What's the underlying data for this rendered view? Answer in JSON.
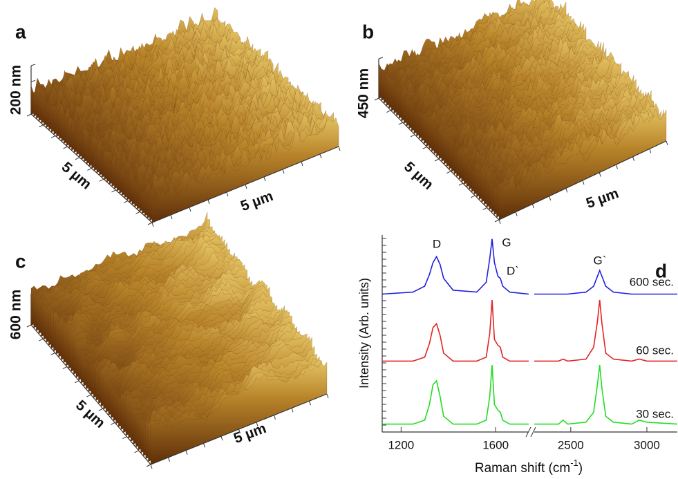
{
  "panels": [
    {
      "letter": "a",
      "z_label": "200 nm",
      "depth_label": "5 µm",
      "width_label": "5 µm"
    },
    {
      "letter": "b",
      "z_label": "450 nm",
      "depth_label": "5 µm",
      "width_label": "5 µm"
    },
    {
      "letter": "c",
      "z_label": "600 nm",
      "depth_label": "5 µm",
      "width_label": "5 µm"
    }
  ],
  "chart_data": {
    "type": "line",
    "letter": "d",
    "x_label": "Raman shift (cm",
    "x_label_sup": "-1",
    "x_label_end": ")",
    "y_label": "Intensity (Arb. units)",
    "x_segments": [
      {
        "xlim": [
          1120,
          1740
        ],
        "xticks": [
          1200,
          1600
        ]
      },
      {
        "xlim": [
          2260,
          3200
        ],
        "xticks": [
          2500,
          3000
        ]
      }
    ],
    "ylim": [
      0,
      10
    ],
    "annotations": [
      "D",
      "G",
      "D`",
      "G`"
    ],
    "x": [
      1120,
      1250,
      1300,
      1320,
      1335,
      1350,
      1365,
      1380,
      1420,
      1520,
      1560,
      1575,
      1585,
      1595,
      1610,
      1620,
      1630,
      1660,
      1740,
      2260,
      2420,
      2450,
      2480,
      2600,
      2650,
      2675,
      2690,
      2705,
      2730,
      2780,
      2900,
      2950,
      3000,
      3200
    ],
    "series": [
      {
        "name": "600 sec.",
        "color": "#1f1fe0",
        "values": [
          7.0,
          7.1,
          7.4,
          8.0,
          8.6,
          8.9,
          8.5,
          7.8,
          7.2,
          7.1,
          7.6,
          8.8,
          9.8,
          8.6,
          7.9,
          7.8,
          7.4,
          7.1,
          7.0,
          7.0,
          7.0,
          7.0,
          7.0,
          7.1,
          7.4,
          7.9,
          8.2,
          7.9,
          7.4,
          7.1,
          7.0,
          7.0,
          7.0,
          7.0
        ]
      },
      {
        "name": "60 sec.",
        "color": "#e52222",
        "values": [
          3.6,
          3.6,
          3.8,
          4.5,
          5.3,
          5.5,
          4.9,
          4.0,
          3.6,
          3.6,
          3.8,
          5.0,
          6.7,
          4.7,
          4.4,
          4.3,
          3.8,
          3.6,
          3.6,
          3.6,
          3.6,
          3.7,
          3.6,
          3.7,
          4.3,
          5.6,
          6.7,
          5.5,
          4.0,
          3.7,
          3.6,
          3.7,
          3.6,
          3.6
        ]
      },
      {
        "name": "30 sec.",
        "color": "#22dd22",
        "values": [
          0.4,
          0.4,
          0.6,
          1.4,
          2.4,
          2.6,
          1.8,
          0.8,
          0.4,
          0.4,
          0.6,
          1.8,
          3.4,
          1.4,
          1.1,
          1.0,
          0.6,
          0.4,
          0.4,
          0.4,
          0.4,
          0.6,
          0.4,
          0.5,
          1.0,
          2.4,
          3.4,
          2.2,
          0.8,
          0.5,
          0.4,
          0.6,
          0.5,
          0.4
        ]
      }
    ]
  }
}
